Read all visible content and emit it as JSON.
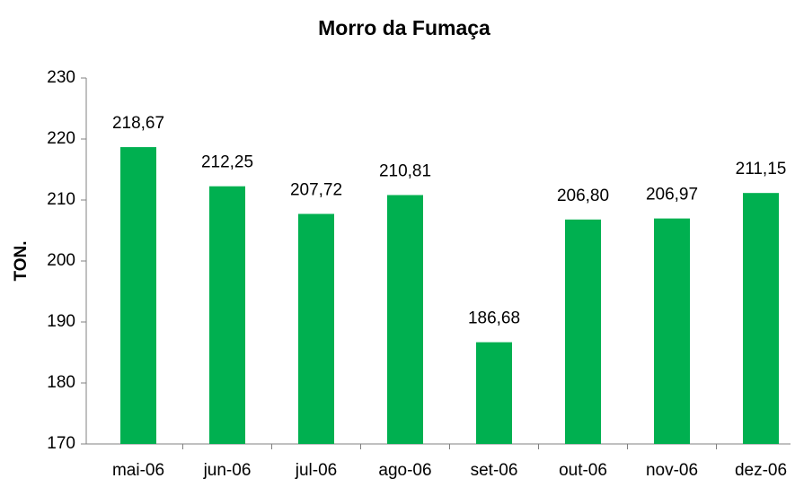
{
  "chart_data": {
    "type": "bar",
    "title": "Morro da Fumaça",
    "ylabel": "TON.",
    "categories": [
      "mai-06",
      "jun-06",
      "jul-06",
      "ago-06",
      "set-06",
      "out-06",
      "nov-06",
      "dez-06"
    ],
    "values": [
      218.67,
      212.25,
      207.72,
      210.81,
      186.68,
      206.8,
      206.97,
      211.15
    ],
    "value_labels": [
      "218,67",
      "212,25",
      "207,72",
      "210,81",
      "186,68",
      "206,80",
      "206,97",
      "211,15"
    ],
    "color": "#00b050",
    "ylim": [
      170,
      230
    ],
    "yticks": [
      170,
      180,
      190,
      200,
      210,
      220,
      230
    ],
    "grid": false
  }
}
